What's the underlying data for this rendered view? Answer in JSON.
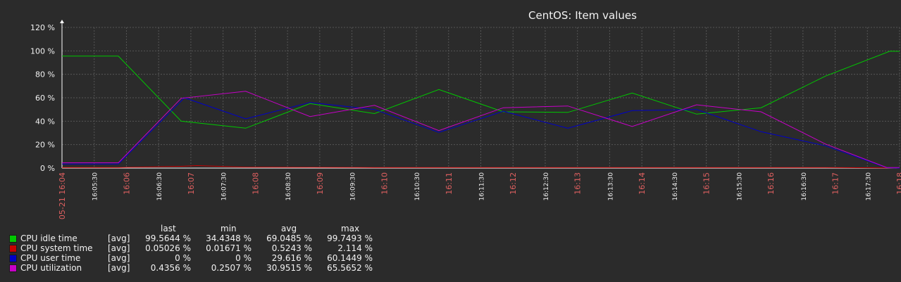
{
  "chart_data": {
    "type": "line",
    "title": "CentOS: Item values",
    "xlabel": "",
    "ylabel": "",
    "ylim": [
      0,
      120
    ],
    "y_ticks": [
      "0 %",
      "20 %",
      "40 %",
      "60 %",
      "80 %",
      "100 %",
      "120 %"
    ],
    "grid": true,
    "x_ticks": [
      {
        "label": "05-21 16:04",
        "major": true
      },
      {
        "label": "16:05:30",
        "major": false
      },
      {
        "label": "16:06",
        "major": true
      },
      {
        "label": "16:06:30",
        "major": false
      },
      {
        "label": "16:07",
        "major": true
      },
      {
        "label": "16:07:30",
        "major": false
      },
      {
        "label": "16:08",
        "major": true
      },
      {
        "label": "16:08:30",
        "major": false
      },
      {
        "label": "16:09",
        "major": true
      },
      {
        "label": "16:09:30",
        "major": false
      },
      {
        "label": "16:10",
        "major": true
      },
      {
        "label": "16:10:30",
        "major": false
      },
      {
        "label": "16:11",
        "major": true
      },
      {
        "label": "16:11:30",
        "major": false
      },
      {
        "label": "16:12",
        "major": true
      },
      {
        "label": "16:12:30",
        "major": false
      },
      {
        "label": "16:13",
        "major": true
      },
      {
        "label": "16:13:30",
        "major": false
      },
      {
        "label": "16:14",
        "major": true
      },
      {
        "label": "16:14:30",
        "major": false
      },
      {
        "label": "16:15",
        "major": true
      },
      {
        "label": "16:15:30",
        "major": false
      },
      {
        "label": "16:16",
        "major": true
      },
      {
        "label": "16:16:30",
        "major": false
      },
      {
        "label": "16:17",
        "major": true
      },
      {
        "label": "16:17:30",
        "major": false
      },
      {
        "label": "16:18",
        "major": true
      }
    ],
    "x_index_range": [
      0,
      26
    ],
    "series": [
      {
        "name": "CPU idle time",
        "color": "#00c800",
        "points": [
          [
            0,
            95.5
          ],
          [
            1.75,
            95.5
          ],
          [
            3.7,
            40
          ],
          [
            5.7,
            34
          ],
          [
            7.7,
            55
          ],
          [
            9.7,
            46.5
          ],
          [
            11.7,
            67
          ],
          [
            13.7,
            48
          ],
          [
            15.7,
            47.5
          ],
          [
            17.7,
            64
          ],
          [
            19.7,
            46
          ],
          [
            21.7,
            51.5
          ],
          [
            23.7,
            78.5
          ],
          [
            25.7,
            99.7
          ],
          [
            26,
            99.6
          ]
        ]
      },
      {
        "name": "CPU system time",
        "color": "#c80000",
        "points": [
          [
            0,
            0.5
          ],
          [
            1.75,
            0.5
          ],
          [
            3.7,
            1.5
          ],
          [
            4.2,
            2.1
          ],
          [
            5.7,
            0.8
          ],
          [
            7.7,
            0.6
          ],
          [
            9.7,
            0.5
          ],
          [
            11.7,
            0.5
          ],
          [
            13.7,
            0.5
          ],
          [
            15.7,
            0.5
          ],
          [
            17.7,
            0.5
          ],
          [
            19.7,
            0.5
          ],
          [
            21.7,
            0.5
          ],
          [
            23.7,
            0.5
          ],
          [
            25.7,
            0.2
          ],
          [
            26,
            0.1
          ]
        ]
      },
      {
        "name": "CPU user time",
        "color": "#0000c8",
        "points": [
          [
            0,
            3.5
          ],
          [
            1.75,
            3.5
          ],
          [
            3.8,
            60
          ],
          [
            5.7,
            42
          ],
          [
            7.7,
            56
          ],
          [
            9.7,
            50
          ],
          [
            11.7,
            30.5
          ],
          [
            13.7,
            48.5
          ],
          [
            15.7,
            34
          ],
          [
            17.7,
            49
          ],
          [
            19.7,
            50
          ],
          [
            21.7,
            31
          ],
          [
            23.7,
            19
          ],
          [
            25.6,
            0.3
          ],
          [
            26,
            0
          ]
        ]
      },
      {
        "name": "CPU utilization",
        "color": "#c800c8",
        "points": [
          [
            0,
            4.5
          ],
          [
            1.75,
            4.5
          ],
          [
            3.7,
            59.5
          ],
          [
            5.7,
            65.5
          ],
          [
            7.7,
            44
          ],
          [
            9.7,
            53.5
          ],
          [
            11.7,
            32
          ],
          [
            13.7,
            51.5
          ],
          [
            15.7,
            53
          ],
          [
            17.7,
            35.5
          ],
          [
            19.7,
            54
          ],
          [
            21.7,
            48
          ],
          [
            23.7,
            20.5
          ],
          [
            25.6,
            0.5
          ],
          [
            26,
            0.4
          ]
        ]
      }
    ]
  },
  "legend": {
    "headers": {
      "last": "last",
      "min": "min",
      "avg": "avg",
      "max": "max"
    },
    "rows": [
      {
        "name": "CPU idle time",
        "func": "[avg]",
        "last": "99.5644 %",
        "min": "34.4348 %",
        "avg": "69.0485 %",
        "max": "99.7493 %",
        "color": "#00c800"
      },
      {
        "name": "CPU system time",
        "func": "[avg]",
        "last": "0.05026 %",
        "min": "0.01671 %",
        "avg": "0.5243 %",
        "max": "2.114 %",
        "color": "#c80000"
      },
      {
        "name": "CPU user time",
        "func": "[avg]",
        "last": "0 %",
        "min": "0 %",
        "avg": "29.616 %",
        "max": "60.1449 %",
        "color": "#0000c8"
      },
      {
        "name": "CPU utilization",
        "func": "[avg]",
        "last": "0.4356 %",
        "min": "0.2507 %",
        "avg": "30.9515 %",
        "max": "65.5652 %",
        "color": "#c800c8"
      }
    ]
  },
  "colors": {
    "background": "#2b2b2b",
    "plot_bg": "#2b2b2b",
    "grid": "#555555",
    "text": "#f2f2f2",
    "major_tick_label": "#e06060"
  }
}
